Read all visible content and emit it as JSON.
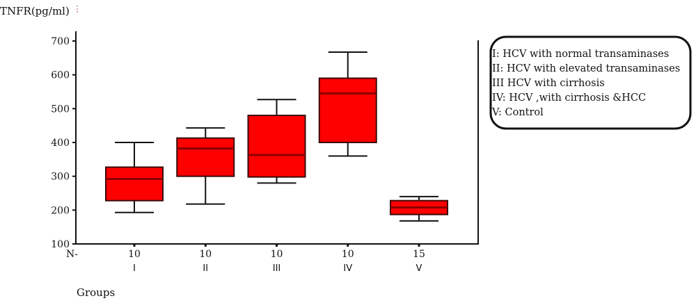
{
  "chart_data": {
    "type": "boxplot",
    "ylabel": "TNFR(pg/ml)",
    "xlabel": "Groups",
    "n_label": "N-",
    "ylim": [
      100,
      700
    ],
    "yticks": [
      100,
      200,
      300,
      400,
      500,
      600,
      700
    ],
    "grid": false,
    "legend_placement": "right",
    "box_color": "#ff0000",
    "median_color": "#8b0000",
    "groups": [
      {
        "label": "I",
        "n": "10",
        "whisker_low": 193,
        "q1": 228,
        "median": 292,
        "q3": 327,
        "whisker_high": 400
      },
      {
        "label": "II",
        "n": "10",
        "whisker_low": 218,
        "q1": 300,
        "median": 382,
        "q3": 413,
        "whisker_high": 443
      },
      {
        "label": "III",
        "n": "10",
        "whisker_low": 280,
        "q1": 298,
        "median": 363,
        "q3": 480,
        "whisker_high": 527
      },
      {
        "label": "IV",
        "n": "10",
        "whisker_low": 360,
        "q1": 400,
        "median": 545,
        "q3": 590,
        "whisker_high": 667
      },
      {
        "label": "V",
        "n": "15",
        "whisker_low": 168,
        "q1": 187,
        "median": 208,
        "q3": 228,
        "whisker_high": 240
      }
    ],
    "legend": [
      "I: HCV with normal transaminases",
      "II: HCV with elevated transaminases",
      "III HCV with cirrhosis",
      "IV: HCV ,with cirrhosis &HCC",
      "V: Control"
    ]
  }
}
